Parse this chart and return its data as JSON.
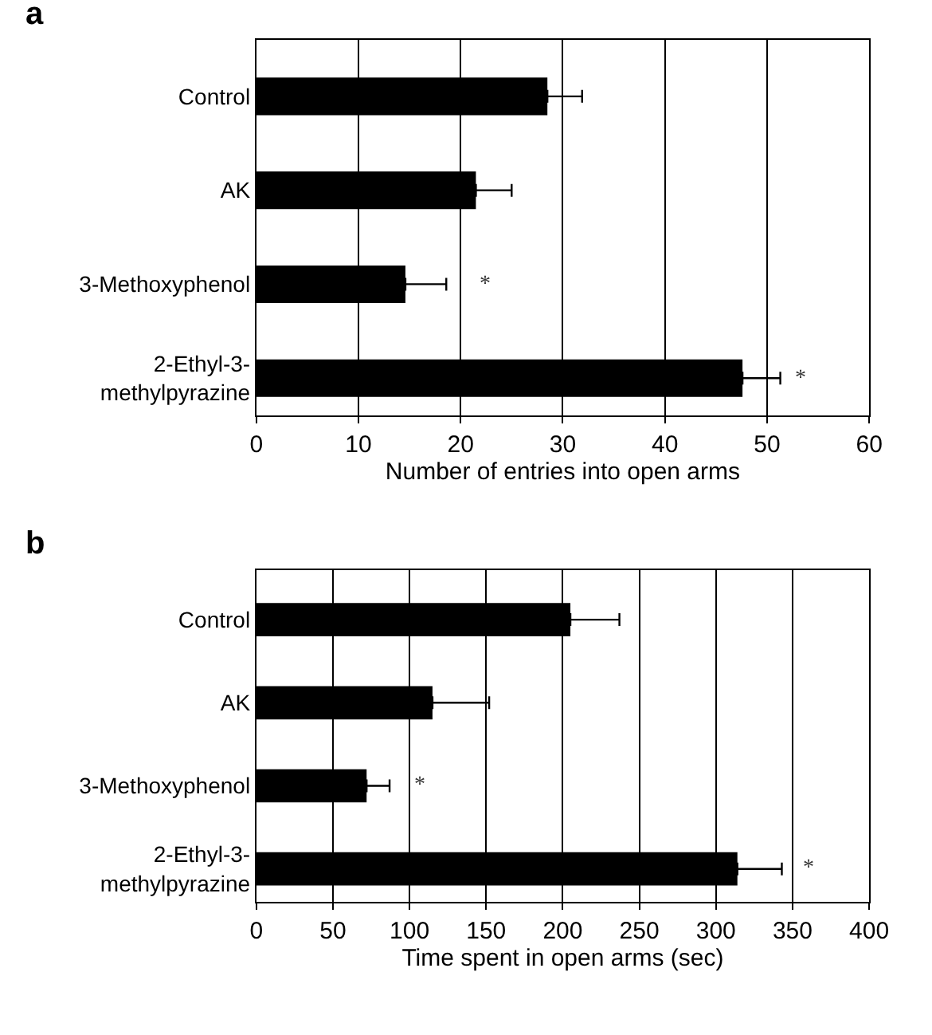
{
  "chart_data": [
    {
      "type": "bar",
      "orientation": "horizontal",
      "xlabel": "Number of entries into open arms",
      "categories": [
        "Control",
        "AK",
        "3-Methoxyphenol",
        "2-Ethyl-3-methylpyrazine"
      ],
      "values": [
        28.5,
        21.5,
        14.6,
        47.6
      ],
      "errors": [
        [
          28.5,
          31.9
        ],
        [
          21.5,
          25.0
        ],
        [
          14.6,
          18.6
        ],
        [
          47.6,
          51.3
        ]
      ],
      "colors": [
        "#000000",
        "#000000",
        "#000000",
        "#000000"
      ],
      "xlim": [
        0,
        60
      ],
      "xticks": [
        0,
        10,
        20,
        30,
        40,
        50,
        60
      ],
      "grid": "x",
      "annotations": [
        "a",
        "*",
        "*"
      ]
    },
    {
      "type": "bar",
      "orientation": "horizontal",
      "xlabel": "Time spent in open arms (sec)",
      "categories": [
        "Control",
        "AK",
        "3-Methoxyphenol",
        "2-Ethyl-3-methylpyrazine"
      ],
      "values": [
        205,
        115,
        72,
        314
      ],
      "errors": [
        [
          205,
          237
        ],
        [
          115,
          152
        ],
        [
          72,
          87
        ],
        [
          314,
          343
        ]
      ],
      "colors": [
        "#000000",
        "#000000",
        "#000000",
        "#000000"
      ],
      "xlim": [
        0,
        400
      ],
      "xticks": [
        0,
        50,
        100,
        150,
        200,
        250,
        300,
        350,
        400
      ],
      "grid": "x",
      "annotations": [
        "b",
        "*",
        "*"
      ]
    }
  ]
}
